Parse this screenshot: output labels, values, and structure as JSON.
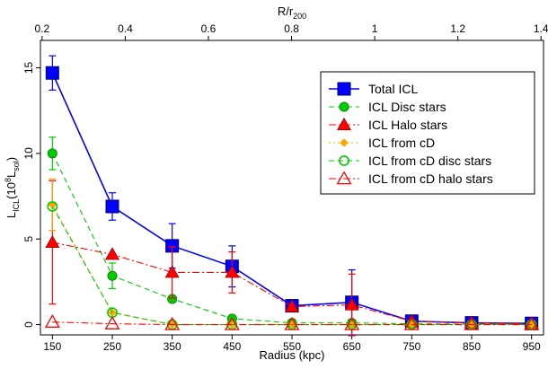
{
  "chart_data": {
    "type": "line",
    "xlabel": "Radius (kpc)",
    "ylabel_main": "L",
    "ylabel_sub": "ICL",
    "ylabel_rest": "(10",
    "ylabel_exp": "8",
    "ylabel_tail": "L",
    "ylabel_sol": "sol",
    "ylabel_close": ")",
    "top_xlabel_main": "R/r",
    "top_xlabel_sub": "200",
    "x_ticks": [
      150,
      250,
      350,
      450,
      550,
      650,
      750,
      850,
      950
    ],
    "x_tick_labels": [
      "150",
      "250",
      "350",
      "450",
      "550",
      "650",
      "750",
      "850",
      "950"
    ],
    "top_ticks": [
      0.2,
      0.4,
      0.6,
      0.8,
      1.0,
      1.2,
      1.4
    ],
    "top_tick_labels": [
      "0.2",
      "0.4",
      "0.6",
      "0.8",
      "1",
      "1.2",
      "1.4"
    ],
    "y_ticks": [
      0,
      5,
      10,
      15
    ],
    "y_tick_labels": [
      "0",
      "5",
      "10",
      "15"
    ],
    "xlim": [
      130,
      970
    ],
    "top_xlim": [
      0.196,
      1.406
    ],
    "ylim": [
      -0.6,
      16.6
    ],
    "legend_position": "top-right",
    "x": [
      150,
      250,
      350,
      450,
      550,
      650,
      750,
      850,
      950
    ],
    "series": [
      {
        "name": "Total ICL",
        "color": "#0000ff",
        "marker": "square",
        "line": "solid",
        "values": [
          14.7,
          6.9,
          4.6,
          3.4,
          1.1,
          1.3,
          0.2,
          0.1,
          0.07
        ],
        "err": [
          1.0,
          0.8,
          1.3,
          1.2,
          0.0,
          1.9,
          0.0,
          0.0,
          0.0
        ]
      },
      {
        "name": "ICL Disc stars",
        "color": "#00cc00",
        "marker": "circle",
        "line": "dashed",
        "values": [
          10.0,
          2.85,
          1.5,
          0.35,
          0.1,
          0.1,
          0.05,
          0.03,
          0.02
        ],
        "err": [
          0.95,
          0.75,
          0.0,
          0.0,
          0.0,
          0.0,
          0.0,
          0.0,
          0.0
        ]
      },
      {
        "name": "ICL Halo stars",
        "color": "#ff0000",
        "marker": "triangle",
        "line": "dotdash",
        "values": [
          4.8,
          4.1,
          3.05,
          3.05,
          1.05,
          1.15,
          0.2,
          0.1,
          0.05
        ],
        "err": [
          3.6,
          0.0,
          1.5,
          1.2,
          0.0,
          1.8,
          0.0,
          0.0,
          0.0
        ]
      },
      {
        "name": "ICL from cD",
        "color": "#ffa500",
        "marker": "diamond",
        "line": "dotted",
        "values": [
          7.0,
          0.7,
          0.0,
          0.0,
          0.0,
          0.0,
          0.0,
          0.0,
          0.0
        ],
        "err": [
          1.5,
          0.0,
          0.0,
          0.0,
          0.0,
          0.0,
          0.0,
          0.0,
          0.0
        ]
      },
      {
        "name": "ICL from cD disc stars",
        "color": "#00cc00",
        "marker": "open-circle",
        "line": "dashed",
        "values": [
          6.9,
          0.7,
          0.0,
          0.0,
          0.0,
          0.0,
          0.0,
          0.0,
          0.0
        ],
        "err": [
          0.0,
          0.0,
          0.0,
          0.0,
          0.0,
          0.0,
          0.0,
          0.0,
          0.0
        ]
      },
      {
        "name": "ICL from cD halo stars",
        "color": "#ff0000",
        "marker": "open-triangle",
        "line": "dotdash",
        "values": [
          0.15,
          0.05,
          0.0,
          0.0,
          0.0,
          0.0,
          0.0,
          0.0,
          0.0
        ],
        "err": [
          0.0,
          0.0,
          0.0,
          0.0,
          0.0,
          0.0,
          0.0,
          0.0,
          0.0
        ]
      }
    ]
  }
}
